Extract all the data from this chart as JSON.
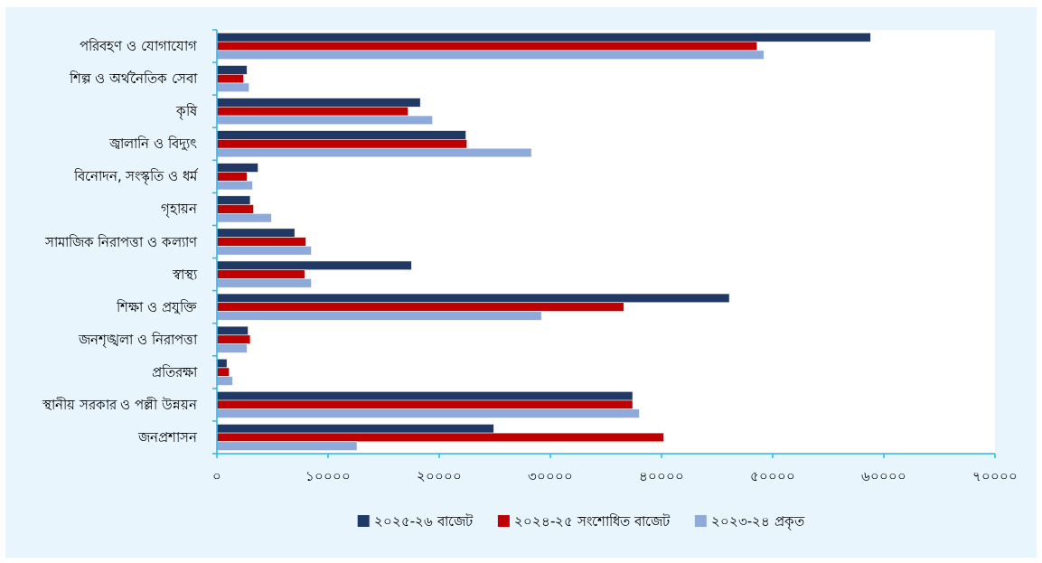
{
  "chart_data": {
    "type": "bar",
    "orientation": "horizontal",
    "categories": [
      "পরিবহণ ও যোগাযোগ",
      "শিল্প ও অর্থনৈতিক সেবা",
      "কৃষি",
      "জ্বালানি ও বিদ্যুৎ",
      "বিনোদন, সংস্কৃতি ও ধর্ম",
      "গৃহায়ন",
      "সামাজিক নিরাপত্তা ও কল্যাণ",
      "স্বাস্থ্য",
      "শিক্ষা ও প্রযুক্তি",
      "জনশৃঙ্খলা ও নিরাপত্তা",
      "প্রতিরক্ষা",
      "স্থানীয় সরকার ও পল্লী উন্নয়ন",
      "জনপ্রশাসন"
    ],
    "series": [
      {
        "name": "২০২৫-২৬ বাজেট",
        "color": "#1f3864",
        "values": [
          58800,
          2700,
          18300,
          22400,
          3700,
          3000,
          7000,
          17500,
          46100,
          2800,
          900,
          37400,
          24900
        ]
      },
      {
        "name": "২০২৪-২৫ সংশোধিত বাজেট",
        "color": "#c00000",
        "values": [
          48600,
          2400,
          17200,
          22500,
          2700,
          3300,
          8000,
          7900,
          36600,
          3000,
          1100,
          37400,
          40200
        ]
      },
      {
        "name": "২০২৩-২৪ প্রকৃত",
        "color": "#8eaadb",
        "values": [
          49200,
          2900,
          19400,
          28300,
          3200,
          4900,
          8500,
          8500,
          29200,
          2700,
          1400,
          38000,
          12600
        ]
      }
    ],
    "xlim": [
      0,
      70000
    ],
    "xticks": [
      {
        "value": 0,
        "label": "০"
      },
      {
        "value": 10000,
        "label": "১০০০০"
      },
      {
        "value": 20000,
        "label": "২০০০০"
      },
      {
        "value": 30000,
        "label": "৩০০০০"
      },
      {
        "value": 40000,
        "label": "৪০০০০"
      },
      {
        "value": 50000,
        "label": "৫০০০০"
      },
      {
        "value": 60000,
        "label": "৬০০০০"
      },
      {
        "value": 70000,
        "label": "৭০০০০"
      }
    ],
    "legend": "bottom"
  }
}
